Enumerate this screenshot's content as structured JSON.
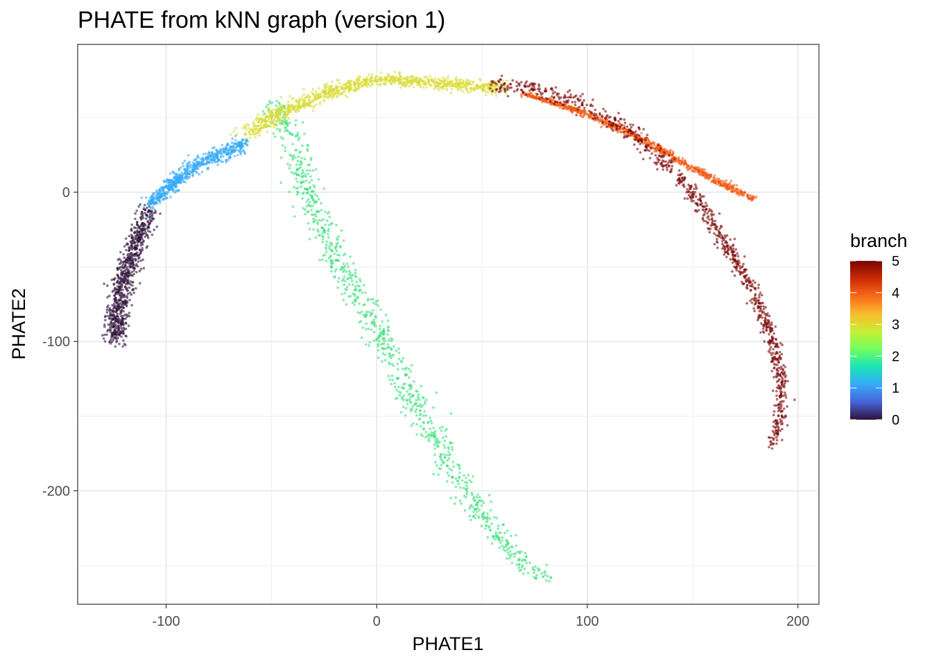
{
  "chart_data": {
    "type": "scatter",
    "title": "PHATE from kNN graph (version 1)",
    "xlabel": "PHATE1",
    "ylabel": "PHATE2",
    "xlim": [
      -142,
      210
    ],
    "ylim": [
      -276,
      99
    ],
    "x_ticks": [
      -100,
      0,
      100,
      200
    ],
    "x_tick_labels": [
      "-100",
      "0",
      "100",
      "200"
    ],
    "y_ticks": [
      0,
      -100,
      -200
    ],
    "y_tick_labels": [
      "0",
      "-100",
      "-200"
    ],
    "grid": true,
    "legend": {
      "title": "branch",
      "position": "right",
      "type": "colorbar",
      "range": [
        0,
        5
      ],
      "ticks": [
        "0",
        "1",
        "2",
        "3",
        "4",
        "5"
      ],
      "colormap": "turbo"
    },
    "colormap_stops": [
      "#30123b",
      "#4662d7",
      "#36aaf9",
      "#1ae4b6",
      "#72fe5e",
      "#c7ef34",
      "#fabb2e",
      "#f66b19",
      "#cb2a04",
      "#7a0403"
    ],
    "series": [
      {
        "branch": 0,
        "color": "#30123b",
        "path_x": [
          -108,
          -112,
          -117,
          -121,
          -123,
          -124,
          -124
        ],
        "path_y": [
          -12,
          -25,
          -45,
          -65,
          -80,
          -90,
          -98
        ],
        "spread": [
          2.5,
          3.5
        ],
        "n": 750
      },
      {
        "branch": 1,
        "color": "#36aaf9",
        "path_x": [
          -108,
          -97,
          -87,
          -77,
          -70,
          -62
        ],
        "path_y": [
          -8,
          5,
          17,
          24,
          28,
          33
        ],
        "spread": [
          1.5,
          2.5
        ],
        "n": 650
      },
      {
        "branch": 2,
        "color": "#38e07a",
        "path_x": [
          -48,
          -42,
          -37,
          -33,
          -27,
          -20,
          -13,
          -5,
          3,
          10,
          20,
          30,
          40,
          50,
          60,
          70,
          80
        ],
        "path_y": [
          60,
          40,
          20,
          0,
          -20,
          -40,
          -60,
          -80,
          -100,
          -120,
          -145,
          -170,
          -195,
          -215,
          -235,
          -250,
          -259
        ],
        "spread": [
          3.5,
          1.5
        ],
        "n": 950
      },
      {
        "branch": 3,
        "color": "#d9dc33",
        "path_x": [
          -62,
          -50,
          -38,
          -25,
          -12,
          0,
          15,
          30,
          45,
          60
        ],
        "path_y": [
          38,
          50,
          58,
          66,
          72,
          75,
          75,
          73,
          71,
          70
        ],
        "spread": [
          3.0,
          2.0
        ],
        "n": 1000
      },
      {
        "branch": 4,
        "color": "#f15a14",
        "path_x": [
          70,
          95,
          120,
          145,
          165,
          180
        ],
        "path_y": [
          66,
          55,
          40,
          20,
          5,
          -5
        ],
        "spread": [
          1.5,
          0.8
        ],
        "n": 800
      },
      {
        "branch": 5,
        "color": "#7a0403",
        "path_x": [
          55,
          75,
          95,
          110,
          125,
          140,
          155,
          168,
          180,
          188,
          192,
          192,
          188
        ],
        "path_y": [
          71,
          70,
          60,
          50,
          35,
          15,
          -10,
          -40,
          -70,
          -100,
          -125,
          -150,
          -168
        ],
        "spread": [
          1.5,
          3.0
        ],
        "n": 950
      }
    ]
  }
}
